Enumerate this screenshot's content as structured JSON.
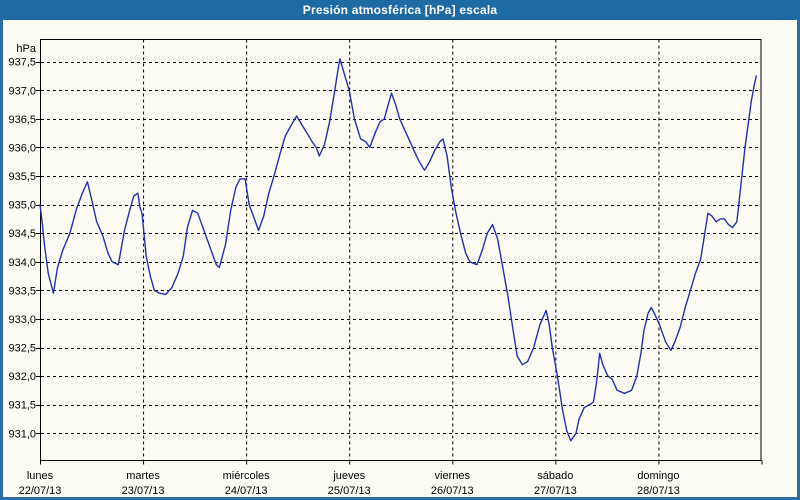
{
  "title_bar": {
    "title": "Presión atmosférica [hPa] escala"
  },
  "colors": {
    "title_bar_bg": "#1E6BA3",
    "title_text": "#FFFFFF",
    "window_border": "#2D6DA3",
    "background": "#FCFCF5",
    "grid": "#000000",
    "line": "#2230B0"
  },
  "chart_data": {
    "type": "line",
    "title": "Presión atmosférica [hPa] escala",
    "unit_label": "hPa",
    "grid": "dashed",
    "legend": "none",
    "ylim": [
      930.55,
      937.9
    ],
    "y_ticks": [
      937.5,
      937.0,
      936.5,
      936.0,
      935.5,
      935.0,
      934.5,
      934.0,
      933.5,
      933.0,
      932.5,
      932.0,
      931.5,
      931.0
    ],
    "y_tick_labels": [
      "937,5",
      "937,0",
      "936,5",
      "936,0",
      "935,5",
      "935,0",
      "934,5",
      "934,0",
      "933,5",
      "933,0",
      "932,5",
      "932,0",
      "931,5",
      "931,0"
    ],
    "x_categories": [
      {
        "name": "lunes",
        "date": "22/07/13"
      },
      {
        "name": "martes",
        "date": "23/07/13"
      },
      {
        "name": "miércoles",
        "date": "24/07/13"
      },
      {
        "name": "jueves",
        "date": "25/07/13"
      },
      {
        "name": "viernes",
        "date": "26/07/13"
      },
      {
        "name": "sábado",
        "date": "27/07/13"
      },
      {
        "name": "domingo",
        "date": "28/07/13"
      }
    ],
    "series": [
      {
        "name": "presión atmosférica",
        "color": "#2230B0",
        "x_unit": "days since 22/07/13 00:00",
        "points": [
          [
            0.0,
            935.0
          ],
          [
            0.02,
            934.7
          ],
          [
            0.04,
            934.35
          ],
          [
            0.08,
            933.8
          ],
          [
            0.13,
            933.45
          ],
          [
            0.17,
            933.9
          ],
          [
            0.22,
            934.2
          ],
          [
            0.29,
            934.5
          ],
          [
            0.35,
            934.9
          ],
          [
            0.41,
            935.2
          ],
          [
            0.46,
            935.4
          ],
          [
            0.5,
            935.1
          ],
          [
            0.55,
            934.7
          ],
          [
            0.61,
            934.45
          ],
          [
            0.66,
            934.15
          ],
          [
            0.7,
            934.0
          ],
          [
            0.76,
            933.95
          ],
          [
            0.82,
            934.55
          ],
          [
            0.87,
            934.9
          ],
          [
            0.91,
            935.15
          ],
          [
            0.95,
            935.2
          ],
          [
            0.97,
            934.95
          ],
          [
            0.99,
            934.85
          ],
          [
            1.03,
            934.1
          ],
          [
            1.07,
            933.75
          ],
          [
            1.11,
            933.5
          ],
          [
            1.16,
            933.45
          ],
          [
            1.22,
            933.43
          ],
          [
            1.28,
            933.55
          ],
          [
            1.34,
            933.8
          ],
          [
            1.39,
            934.1
          ],
          [
            1.43,
            934.6
          ],
          [
            1.48,
            934.9
          ],
          [
            1.53,
            934.85
          ],
          [
            1.59,
            934.55
          ],
          [
            1.65,
            934.25
          ],
          [
            1.71,
            933.95
          ],
          [
            1.74,
            933.9
          ],
          [
            1.8,
            934.3
          ],
          [
            1.85,
            934.9
          ],
          [
            1.9,
            935.3
          ],
          [
            1.94,
            935.45
          ],
          [
            1.99,
            935.45
          ],
          [
            2.03,
            935.0
          ],
          [
            2.08,
            934.75
          ],
          [
            2.12,
            934.55
          ],
          [
            2.17,
            934.8
          ],
          [
            2.22,
            935.2
          ],
          [
            2.27,
            935.5
          ],
          [
            2.33,
            935.9
          ],
          [
            2.38,
            936.2
          ],
          [
            2.44,
            936.4
          ],
          [
            2.49,
            936.55
          ],
          [
            2.54,
            936.4
          ],
          [
            2.59,
            936.25
          ],
          [
            2.64,
            936.1
          ],
          [
            2.68,
            936.0
          ],
          [
            2.71,
            935.85
          ],
          [
            2.76,
            936.05
          ],
          [
            2.81,
            936.45
          ],
          [
            2.86,
            937.0
          ],
          [
            2.89,
            937.35
          ],
          [
            2.91,
            937.55
          ],
          [
            2.95,
            937.3
          ],
          [
            3.0,
            937.0
          ],
          [
            3.05,
            936.5
          ],
          [
            3.11,
            936.15
          ],
          [
            3.16,
            936.1
          ],
          [
            3.2,
            936.0
          ],
          [
            3.25,
            936.25
          ],
          [
            3.3,
            936.45
          ],
          [
            3.34,
            936.5
          ],
          [
            3.37,
            936.7
          ],
          [
            3.41,
            936.95
          ],
          [
            3.45,
            936.75
          ],
          [
            3.49,
            936.5
          ],
          [
            3.54,
            936.3
          ],
          [
            3.59,
            936.1
          ],
          [
            3.64,
            935.9
          ],
          [
            3.68,
            935.75
          ],
          [
            3.73,
            935.6
          ],
          [
            3.78,
            935.75
          ],
          [
            3.83,
            935.95
          ],
          [
            3.88,
            936.1
          ],
          [
            3.91,
            936.15
          ],
          [
            3.95,
            935.85
          ],
          [
            3.99,
            935.3
          ],
          [
            4.03,
            934.9
          ],
          [
            4.08,
            934.5
          ],
          [
            4.13,
            934.15
          ],
          [
            4.17,
            934.0
          ],
          [
            4.24,
            933.95
          ],
          [
            4.29,
            934.2
          ],
          [
            4.34,
            934.5
          ],
          [
            4.39,
            934.65
          ],
          [
            4.44,
            934.4
          ],
          [
            4.49,
            933.9
          ],
          [
            4.54,
            933.4
          ],
          [
            4.59,
            932.8
          ],
          [
            4.63,
            932.35
          ],
          [
            4.68,
            932.2
          ],
          [
            4.73,
            932.25
          ],
          [
            4.79,
            932.5
          ],
          [
            4.85,
            932.9
          ],
          [
            4.91,
            933.15
          ],
          [
            4.94,
            932.9
          ],
          [
            4.97,
            932.5
          ],
          [
            5.02,
            932.0
          ],
          [
            5.07,
            931.4
          ],
          [
            5.11,
            931.05
          ],
          [
            5.15,
            930.87
          ],
          [
            5.2,
            931.0
          ],
          [
            5.23,
            931.25
          ],
          [
            5.28,
            931.45
          ],
          [
            5.33,
            931.5
          ],
          [
            5.37,
            931.55
          ],
          [
            5.4,
            931.9
          ],
          [
            5.43,
            932.4
          ],
          [
            5.46,
            932.2
          ],
          [
            5.51,
            932.0
          ],
          [
            5.55,
            931.95
          ],
          [
            5.6,
            931.75
          ],
          [
            5.67,
            931.7
          ],
          [
            5.74,
            931.75
          ],
          [
            5.79,
            932.0
          ],
          [
            5.83,
            932.4
          ],
          [
            5.86,
            932.8
          ],
          [
            5.9,
            933.1
          ],
          [
            5.93,
            933.2
          ],
          [
            5.96,
            933.1
          ],
          [
            6.01,
            932.9
          ],
          [
            6.07,
            932.6
          ],
          [
            6.12,
            932.45
          ],
          [
            6.16,
            932.6
          ],
          [
            6.21,
            932.85
          ],
          [
            6.26,
            933.2
          ],
          [
            6.31,
            933.5
          ],
          [
            6.36,
            933.8
          ],
          [
            6.41,
            934.05
          ],
          [
            6.45,
            934.5
          ],
          [
            6.48,
            934.85
          ],
          [
            6.52,
            934.8
          ],
          [
            6.56,
            934.7
          ],
          [
            6.6,
            934.75
          ],
          [
            6.64,
            934.75
          ],
          [
            6.68,
            934.65
          ],
          [
            6.72,
            934.6
          ],
          [
            6.76,
            934.7
          ],
          [
            6.78,
            935.0
          ],
          [
            6.81,
            935.5
          ],
          [
            6.84,
            936.0
          ],
          [
            6.87,
            936.4
          ],
          [
            6.9,
            936.8
          ],
          [
            6.93,
            937.1
          ],
          [
            6.95,
            937.25
          ]
        ]
      }
    ]
  }
}
